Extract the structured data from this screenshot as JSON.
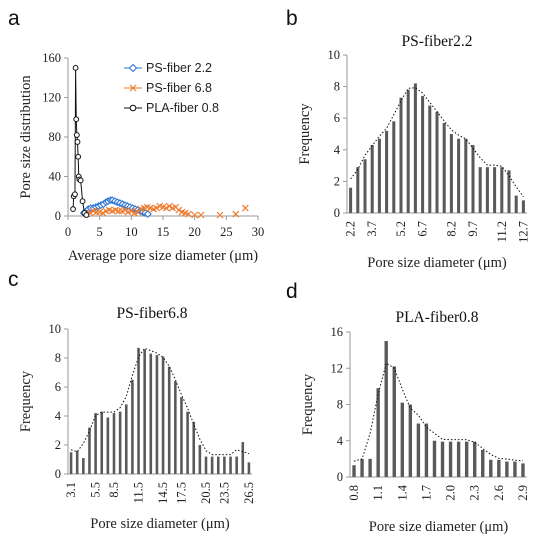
{
  "chart_data": [
    {
      "id": "a",
      "panel_letter": "a",
      "type": "scatter",
      "title": "",
      "xlabel": "Average pore size diameter (μm)",
      "ylabel": "Pore size distribution",
      "xlim": [
        0,
        30
      ],
      "ylim": [
        0,
        160
      ],
      "x_ticks": [
        "0",
        "5",
        "10",
        "15",
        "20",
        "25",
        "30"
      ],
      "y_ticks": [
        "0",
        "40",
        "80",
        "120",
        "160"
      ],
      "legend_position": "top-right",
      "series": [
        {
          "name": "PS-fiber 2.2",
          "color": "#2e75d6",
          "marker": "diamond",
          "line": true,
          "points": [
            [
              2.5,
              3
            ],
            [
              2.9,
              5
            ],
            [
              3.2,
              7
            ],
            [
              3.6,
              8
            ],
            [
              4.0,
              8
            ],
            [
              4.4,
              9
            ],
            [
              4.8,
              10
            ],
            [
              5.2,
              11
            ],
            [
              5.6,
              12
            ],
            [
              6.0,
              14
            ],
            [
              6.3,
              15
            ],
            [
              6.7,
              16
            ],
            [
              7.0,
              16
            ],
            [
              7.4,
              15
            ],
            [
              7.8,
              14
            ],
            [
              8.2,
              13
            ],
            [
              8.6,
              12
            ],
            [
              9.0,
              11
            ],
            [
              9.4,
              10
            ],
            [
              9.8,
              9
            ],
            [
              10.2,
              8
            ],
            [
              10.6,
              7
            ],
            [
              11.0,
              6
            ],
            [
              11.4,
              5
            ],
            [
              11.8,
              4
            ],
            [
              12.2,
              3
            ],
            [
              12.6,
              2
            ]
          ]
        },
        {
          "name": "PS-fiber 6.8",
          "color": "#ed7d31",
          "marker": "x",
          "line": false,
          "points": [
            [
              3.0,
              2
            ],
            [
              3.5,
              3
            ],
            [
              4.0,
              5
            ],
            [
              4.5,
              4
            ],
            [
              5.0,
              4
            ],
            [
              5.5,
              3
            ],
            [
              6.0,
              5
            ],
            [
              6.5,
              6
            ],
            [
              7.0,
              5
            ],
            [
              7.5,
              6
            ],
            [
              8.0,
              5
            ],
            [
              8.5,
              5
            ],
            [
              9.0,
              6
            ],
            [
              9.5,
              4
            ],
            [
              10.0,
              5
            ],
            [
              10.5,
              3
            ],
            [
              11.0,
              4
            ],
            [
              11.5,
              7
            ],
            [
              12.0,
              8
            ],
            [
              12.5,
              9
            ],
            [
              13.0,
              8
            ],
            [
              13.5,
              7
            ],
            [
              14.0,
              8
            ],
            [
              14.5,
              10
            ],
            [
              15.0,
              9
            ],
            [
              15.5,
              8
            ],
            [
              16.0,
              10
            ],
            [
              16.5,
              8
            ],
            [
              17.0,
              9
            ],
            [
              17.5,
              6
            ],
            [
              18.0,
              4
            ],
            [
              18.5,
              3
            ],
            [
              19.0,
              2
            ],
            [
              20.0,
              1
            ],
            [
              21.0,
              1
            ],
            [
              24.0,
              1
            ],
            [
              26.5,
              2
            ],
            [
              28.0,
              8
            ]
          ]
        },
        {
          "name": "PLA-fiber 0.8",
          "color": "#111111",
          "marker": "circle",
          "line": true,
          "points": [
            [
              0.8,
              7
            ],
            [
              0.9,
              20
            ],
            [
              1.1,
              22
            ],
            [
              1.2,
              150
            ],
            [
              1.3,
              98
            ],
            [
              1.4,
              82
            ],
            [
              1.5,
              75
            ],
            [
              1.6,
              60
            ],
            [
              1.7,
              40
            ],
            [
              1.8,
              37
            ],
            [
              2.0,
              36
            ],
            [
              2.3,
              15
            ],
            [
              2.6,
              3
            ],
            [
              2.9,
              1
            ]
          ]
        }
      ]
    },
    {
      "id": "b",
      "panel_letter": "b",
      "type": "bar",
      "title": "PS-fiber2.2",
      "xlabel": "Pore size diameter (μm)",
      "ylabel": "Frequency",
      "ylim": [
        0,
        10
      ],
      "y_ticks": [
        "0",
        "2",
        "4",
        "6",
        "8",
        "10"
      ],
      "x_tick_labels": [
        "2.2",
        "3.7",
        "5.2",
        "6.7",
        "8.2",
        "9.7",
        "11.2",
        "12.7"
      ],
      "values": [
        1.6,
        2.9,
        3.4,
        4.3,
        4.7,
        5.2,
        5.8,
        7.3,
        7.8,
        8.2,
        7.4,
        6.8,
        6.4,
        5.7,
        5.0,
        4.7,
        4.7,
        4.3,
        2.9,
        2.9,
        2.9,
        2.9,
        2.7,
        1.1,
        0.8
      ],
      "trend_line": "dotted"
    },
    {
      "id": "c",
      "panel_letter": "c",
      "type": "bar",
      "title": "PS-fiber6.8",
      "xlabel": "Pore size diameter (μm)",
      "ylabel": "Frequency",
      "ylim": [
        0,
        10
      ],
      "y_ticks": [
        "0",
        "2",
        "4",
        "6",
        "8",
        "10"
      ],
      "x_tick_labels": [
        "3.1",
        "5.5",
        "8.5",
        "11.5",
        "14.5",
        "17.5",
        "20.5",
        "23.5",
        "26.5"
      ],
      "values": [
        1.5,
        1.6,
        1.1,
        3.2,
        4.2,
        4.3,
        3.9,
        4.2,
        4.3,
        4.8,
        6.5,
        8.7,
        8.6,
        8.3,
        8.2,
        8.1,
        7.4,
        6.4,
        5.3,
        4.3,
        3.6,
        2.0,
        1.2,
        1.2,
        1.2,
        1.2,
        1.2,
        1.2,
        2.2,
        0.8
      ],
      "trend_line": "dotted"
    },
    {
      "id": "d",
      "panel_letter": "d",
      "type": "bar",
      "title": "PLA-fiber0.8",
      "xlabel": "Pore size diameter (μm)",
      "ylabel": "Frequency",
      "ylim": [
        0,
        16
      ],
      "y_ticks": [
        "0",
        "4",
        "8",
        "12",
        "16"
      ],
      "x_tick_labels": [
        "0.8",
        "1.1",
        "1.4",
        "1.7",
        "2.0",
        "2.3",
        "2.6",
        "2.9"
      ],
      "values": [
        1.3,
        2.0,
        2.0,
        9.8,
        15.0,
        12.2,
        8.2,
        8.0,
        5.9,
        5.9,
        4.0,
        3.9,
        3.9,
        3.9,
        3.9,
        3.9,
        3.0,
        1.9,
        1.9,
        1.7,
        1.7,
        1.5
      ],
      "trend_line": "dotted"
    }
  ]
}
